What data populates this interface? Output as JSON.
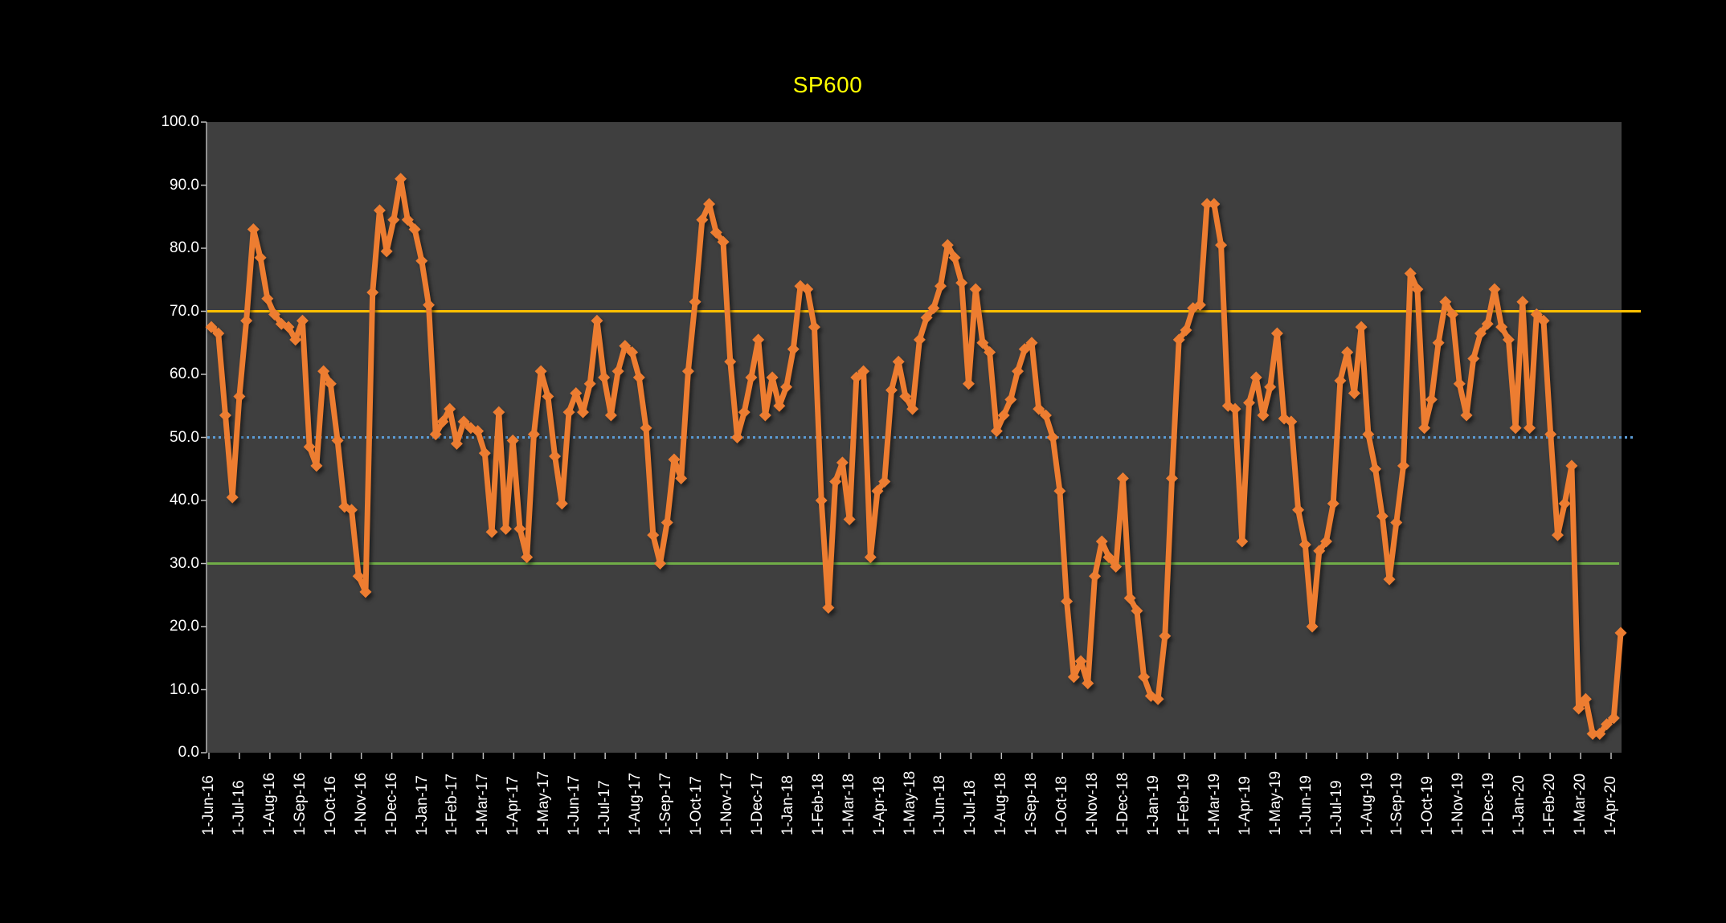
{
  "window": {
    "background": "#000000"
  },
  "chart_data": {
    "type": "line",
    "title": "SP600",
    "title_color": "#FFFF00",
    "plot_background": "#3F3F3F",
    "axis_text_color": "#FFFFFF",
    "axis_line_color": "#BFBFBF",
    "grid": "off",
    "legend": "none",
    "ylim": [
      0,
      100
    ],
    "y_tick_labels": [
      "100.0",
      "90.0",
      "80.0",
      "70.0",
      "60.0",
      "50.0",
      "40.0",
      "30.0",
      "20.0",
      "10.0",
      "0.0"
    ],
    "x_unit": "weeks",
    "x_tick_labels": [
      "1-Jun-16",
      "1-Jul-16",
      "1-Aug-16",
      "1-Sep-16",
      "1-Oct-16",
      "1-Nov-16",
      "1-Dec-16",
      "1-Jan-17",
      "1-Feb-17",
      "1-Mar-17",
      "1-Apr-17",
      "1-May-17",
      "1-Jun-17",
      "1-Jul-17",
      "1-Aug-17",
      "1-Sep-17",
      "1-Oct-17",
      "1-Nov-17",
      "1-Dec-17",
      "1-Jan-18",
      "1-Feb-18",
      "1-Mar-18",
      "1-Apr-18",
      "1-May-18",
      "1-Jun-18",
      "1-Jul-18",
      "1-Aug-18",
      "1-Sep-18",
      "1-Oct-18",
      "1-Nov-18",
      "1-Dec-18",
      "1-Jan-19",
      "1-Feb-19",
      "1-Mar-19",
      "1-Apr-19",
      "1-May-19",
      "1-Jun-19",
      "1-Jul-19",
      "1-Aug-19",
      "1-Sep-19",
      "1-Oct-19",
      "1-Nov-19",
      "1-Dec-19",
      "1-Jan-20",
      "1-Feb-20",
      "1-Mar-20",
      "1-Apr-20"
    ],
    "reference_lines": [
      {
        "value": 70,
        "color": "#FFC000",
        "style": "solid",
        "overhang": 24
      },
      {
        "value": 50,
        "color": "#5B9BD5",
        "style": "dotted",
        "overhang": 15
      },
      {
        "value": 30,
        "color": "#70AD47",
        "style": "solid",
        "overhang": -3
      }
    ],
    "series": [
      {
        "name": "SP600",
        "color": "#ED7D31",
        "marker": "diamond",
        "values": [
          67.5,
          66.5,
          53.5,
          40.5,
          56.5,
          68.5,
          83,
          78.5,
          72,
          69.5,
          68,
          67.5,
          65.5,
          68.5,
          48.5,
          45.5,
          60.5,
          58.5,
          49.5,
          39,
          38.5,
          28,
          25.5,
          73,
          86,
          79.5,
          84.5,
          91,
          84.5,
          83,
          78,
          71,
          50.5,
          52.5,
          54.5,
          49,
          52.5,
          51.5,
          51,
          47.5,
          35,
          54,
          35.5,
          49.5,
          35.5,
          31,
          50.5,
          60.5,
          56.5,
          47,
          39.5,
          54,
          57,
          54,
          58.5,
          68.5,
          59.5,
          53.5,
          60.5,
          64.5,
          63.5,
          59.5,
          51.5,
          34.5,
          30,
          36.5,
          46.5,
          43.5,
          60.5,
          71.5,
          84.5,
          87,
          82.5,
          81,
          62,
          50,
          54,
          59.5,
          65.5,
          53.5,
          59.5,
          55,
          58,
          64,
          74,
          73.5,
          67.5,
          40,
          23,
          43,
          46,
          37,
          59.5,
          60.5,
          31,
          41.5,
          43,
          57.5,
          62,
          56.5,
          54.5,
          65.5,
          69,
          70.5,
          74,
          80.5,
          78.5,
          74.5,
          58.5,
          73.5,
          65,
          63.5,
          51,
          53.5,
          56,
          60.5,
          64,
          65,
          54.5,
          53.5,
          50,
          41.5,
          24,
          12,
          14.5,
          11,
          28,
          33.5,
          31,
          29.5,
          43.5,
          24.5,
          22.5,
          12,
          9,
          8.5,
          18.5,
          43.5,
          65.5,
          67,
          70.5,
          71,
          87,
          87,
          80.5,
          55,
          54.5,
          33.5,
          55.5,
          59.5,
          53.5,
          58,
          66.5,
          53,
          52.5,
          38.5,
          33,
          20,
          32,
          33.5,
          39.5,
          59,
          63.5,
          57,
          67.5,
          50.5,
          45,
          37.5,
          27.5,
          36.5,
          45.5,
          76,
          73.5,
          51.5,
          56,
          65,
          71.5,
          69.5,
          58.5,
          53.5,
          62.5,
          66.5,
          68,
          73.5,
          67.5,
          65.5,
          51.5,
          71.5,
          51.5,
          69.5,
          68.5,
          50.5,
          34.5,
          39.5,
          45.5,
          7,
          8.5,
          3,
          3,
          4.5,
          5.5,
          19
        ]
      }
    ]
  }
}
